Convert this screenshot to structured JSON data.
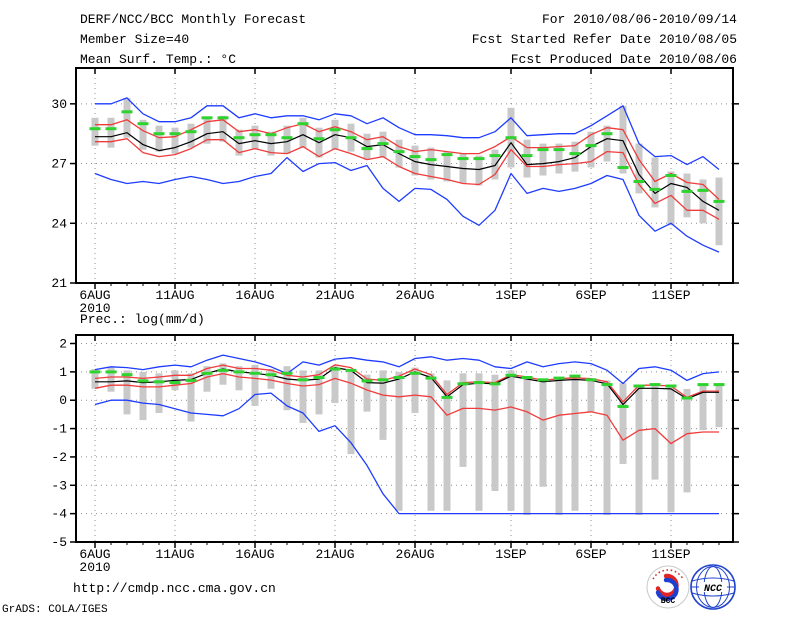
{
  "header": {
    "title": "DERF/NCC/BCC Monthly Forecast",
    "member_size": "Member Size=40",
    "for_range": "For 2010/08/06-2010/09/14",
    "fcst_started": "Fcst Started Refer Date 2010/08/05",
    "fcst_produced": "Fcst Produced Date 2010/08/06"
  },
  "footer": {
    "url": "http://cmdp.ncc.cma.gov.cn",
    "credit": "GrADS: COLA/IGES",
    "logos": [
      {
        "label": "BCC"
      },
      {
        "label": "NCC"
      }
    ]
  },
  "colors": {
    "blue": "#1e3cff",
    "red": "#f03c3c",
    "green": "#2fd32f",
    "black": "#000000",
    "bar": "#c9c9c9",
    "grid": "#8f8f8f"
  },
  "chart_data": [
    {
      "type": "line",
      "title": "Mean Surf. Temp.: °C",
      "x_start": "6AUG2010",
      "x_days": 40,
      "ylim": [
        21,
        31.8
      ],
      "yticks": [
        30,
        27,
        24,
        21
      ],
      "xticks": [
        {
          "label": "6AUG",
          "sub": "2010",
          "day": 0
        },
        {
          "label": "11AUG",
          "day": 5
        },
        {
          "label": "16AUG",
          "day": 10
        },
        {
          "label": "21AUG",
          "day": 15
        },
        {
          "label": "26AUG",
          "day": 20
        },
        {
          "label": "1SEP",
          "day": 26
        },
        {
          "label": "6SEP",
          "day": 31
        },
        {
          "label": "11SEP",
          "day": 36
        }
      ],
      "series": [
        {
          "name": "ensemble-max-blue",
          "color": "blue",
          "values": [
            30.0,
            30.0,
            30.3,
            29.5,
            29.1,
            29.1,
            29.3,
            29.9,
            29.9,
            29.3,
            29.5,
            29.3,
            29.4,
            29.4,
            29.2,
            29.5,
            29.4,
            29.0,
            29.3,
            28.8,
            28.45,
            28.45,
            28.4,
            28.3,
            28.3,
            28.6,
            29.3,
            28.4,
            28.45,
            28.5,
            28.5,
            28.9,
            29.4,
            29.9,
            28.0,
            27.35,
            27.4,
            26.95,
            27.35,
            26.7
          ]
        },
        {
          "name": "upper-quartile-red",
          "color": "red",
          "values": [
            28.95,
            28.95,
            29.2,
            28.65,
            28.3,
            28.35,
            28.7,
            29.1,
            29.2,
            28.6,
            28.7,
            28.5,
            28.8,
            29.0,
            28.6,
            28.85,
            28.6,
            28.2,
            28.35,
            27.85,
            27.6,
            27.7,
            27.6,
            27.5,
            27.5,
            27.85,
            28.35,
            27.8,
            27.8,
            27.85,
            27.9,
            28.45,
            28.8,
            28.7,
            27.2,
            26.1,
            26.5,
            26.05,
            25.95,
            25.2
          ]
        },
        {
          "name": "lower-quartile-red",
          "color": "red",
          "values": [
            28.1,
            28.1,
            28.25,
            27.55,
            27.35,
            27.45,
            27.75,
            28.2,
            28.2,
            27.55,
            27.75,
            27.55,
            27.5,
            27.85,
            27.35,
            27.75,
            27.5,
            27.2,
            27.35,
            26.85,
            26.5,
            26.35,
            26.2,
            26.0,
            25.95,
            26.45,
            27.7,
            26.85,
            26.85,
            26.95,
            27.0,
            27.1,
            27.6,
            27.55,
            25.95,
            25.0,
            25.4,
            24.65,
            24.65,
            24.2
          ]
        },
        {
          "name": "ensemble-min-blue",
          "color": "blue",
          "values": [
            26.5,
            26.2,
            26.0,
            26.1,
            26.0,
            26.2,
            26.35,
            26.2,
            26.0,
            26.1,
            26.35,
            26.5,
            27.3,
            26.6,
            27.0,
            27.05,
            26.65,
            26.9,
            25.75,
            25.1,
            25.75,
            25.7,
            25.2,
            24.35,
            23.9,
            24.65,
            26.5,
            25.5,
            25.75,
            25.6,
            25.75,
            26.0,
            26.4,
            26.2,
            24.4,
            23.6,
            24.0,
            23.35,
            22.9,
            22.55
          ]
        },
        {
          "name": "ensemble-mean-black",
          "color": "black",
          "values": [
            28.35,
            28.35,
            28.55,
            27.95,
            27.65,
            27.8,
            28.1,
            28.5,
            28.6,
            28.0,
            28.15,
            28.0,
            28.1,
            28.45,
            28.05,
            28.45,
            28.3,
            27.85,
            27.95,
            27.5,
            27.1,
            26.95,
            26.85,
            26.75,
            26.7,
            26.9,
            28.05,
            26.95,
            27.0,
            27.1,
            27.3,
            27.85,
            28.25,
            28.15,
            26.45,
            25.5,
            26.0,
            25.8,
            25.1,
            24.65
          ]
        }
      ],
      "obs": {
        "name": "green-dash-reference",
        "color": "green",
        "values": [
          28.75,
          28.75,
          29.6,
          29.0,
          28.5,
          28.5,
          28.6,
          29.3,
          29.3,
          28.3,
          28.45,
          28.45,
          28.3,
          29.0,
          28.25,
          28.7,
          28.3,
          27.75,
          28.0,
          27.6,
          27.35,
          27.2,
          27.45,
          27.25,
          27.25,
          27.4,
          28.3,
          27.4,
          27.7,
          27.7,
          27.5,
          27.9,
          28.5,
          26.8,
          26.1,
          25.7,
          26.4,
          25.6,
          25.65,
          25.1
        ]
      },
      "bars": {
        "name": "ensemble-spread-bar",
        "color": "bar",
        "ranges": [
          [
            27.9,
            29.3
          ],
          [
            27.8,
            29.3
          ],
          [
            28.3,
            30.3
          ],
          [
            27.7,
            29.2
          ],
          [
            27.6,
            28.9
          ],
          [
            27.5,
            28.8
          ],
          [
            27.8,
            29.0
          ],
          [
            28.0,
            29.3
          ],
          [
            28.1,
            29.4
          ],
          [
            27.4,
            28.7
          ],
          [
            27.7,
            28.9
          ],
          [
            27.4,
            28.6
          ],
          [
            27.5,
            28.9
          ],
          [
            27.8,
            29.3
          ],
          [
            27.3,
            28.8
          ],
          [
            27.7,
            29.2
          ],
          [
            27.6,
            29.0
          ],
          [
            27.2,
            28.5
          ],
          [
            27.3,
            28.6
          ],
          [
            26.8,
            28.2
          ],
          [
            26.4,
            27.9
          ],
          [
            26.2,
            27.8
          ],
          [
            26.1,
            27.6
          ],
          [
            26.0,
            27.5
          ],
          [
            25.9,
            27.4
          ],
          [
            26.2,
            27.7
          ],
          [
            26.8,
            29.8
          ],
          [
            26.3,
            28.2
          ],
          [
            26.4,
            28.0
          ],
          [
            26.5,
            28.0
          ],
          [
            26.6,
            28.1
          ],
          [
            26.8,
            28.6
          ],
          [
            27.1,
            28.9
          ],
          [
            26.5,
            29.9
          ],
          [
            25.5,
            28.0
          ],
          [
            24.8,
            27.3
          ],
          [
            23.9,
            26.6
          ],
          [
            24.3,
            26.5
          ],
          [
            24.0,
            26.2
          ],
          [
            22.9,
            26.3
          ]
        ]
      }
    },
    {
      "type": "line",
      "title": "Prec.: log(mm/d)",
      "x_start": "6AUG2010",
      "x_days": 40,
      "ylim": [
        -5,
        2.3
      ],
      "yticks": [
        2,
        1,
        0,
        -1,
        -2,
        -3,
        -4,
        -5
      ],
      "xticks": [
        {
          "label": "6AUG",
          "sub": "2010",
          "day": 0
        },
        {
          "label": "11AUG",
          "day": 5
        },
        {
          "label": "16AUG",
          "day": 10
        },
        {
          "label": "21AUG",
          "day": 15
        },
        {
          "label": "26AUG",
          "day": 20
        },
        {
          "label": "1SEP",
          "day": 26
        },
        {
          "label": "6SEP",
          "day": 31
        },
        {
          "label": "11SEP",
          "day": 36
        }
      ],
      "series": [
        {
          "name": "ensemble-max-blue",
          "color": "blue",
          "values": [
            1.08,
            1.18,
            1.15,
            1.08,
            1.18,
            1.24,
            1.18,
            1.41,
            1.59,
            1.47,
            1.35,
            1.18,
            0.94,
            1.35,
            1.24,
            1.45,
            1.5,
            1.41,
            1.35,
            1.18,
            1.47,
            1.53,
            1.41,
            1.47,
            1.41,
            1.18,
            1.12,
            1.35,
            1.18,
            1.29,
            1.35,
            1.29,
            1.06,
            0.59,
            1.12,
            1.18,
            1.06,
            0.7,
            0.94,
            1.0
          ]
        },
        {
          "name": "upper-quartile-red",
          "color": "red",
          "values": [
            0.77,
            0.82,
            0.82,
            0.77,
            0.82,
            0.88,
            0.88,
            1.12,
            1.24,
            1.12,
            1.12,
            1.06,
            0.88,
            0.82,
            0.9,
            1.25,
            1.15,
            0.75,
            0.7,
            0.85,
            1.1,
            0.9,
            0.2,
            0.62,
            0.65,
            0.62,
            0.9,
            0.82,
            0.7,
            0.76,
            0.79,
            0.76,
            0.65,
            -0.06,
            0.53,
            0.53,
            0.5,
            0.1,
            0.32,
            0.32
          ]
        },
        {
          "name": "lower-quartile-red",
          "color": "red",
          "values": [
            0.42,
            0.53,
            0.53,
            0.47,
            0.47,
            0.53,
            0.59,
            0.82,
            0.94,
            0.82,
            0.77,
            0.71,
            0.59,
            0.5,
            0.55,
            0.77,
            0.6,
            0.36,
            0.18,
            0.12,
            0.18,
            0.12,
            -0.53,
            -0.29,
            -0.29,
            -0.35,
            -0.24,
            -0.41,
            -0.7,
            -0.53,
            -0.47,
            -0.41,
            -0.53,
            -1.41,
            -1.06,
            -1.0,
            -1.53,
            -1.18,
            -1.12,
            -1.12
          ]
        },
        {
          "name": "ensemble-min-blue",
          "color": "blue",
          "values": [
            -0.15,
            0.0,
            0.0,
            -0.1,
            -0.15,
            -0.3,
            -0.45,
            -0.5,
            -0.55,
            -0.3,
            0.2,
            0.25,
            -0.2,
            -0.45,
            -1.1,
            -0.9,
            -1.5,
            -2.3,
            -3.3,
            -4.0,
            -4.0,
            -4.0,
            -4.0,
            -4.0,
            -4.0,
            -4.0,
            -4.0,
            -4.0,
            -4.0,
            -4.0,
            -4.0,
            -4.0,
            -4.0,
            -4.0,
            -4.0,
            -4.0,
            -4.0,
            -4.0,
            -4.0,
            -4.0
          ]
        },
        {
          "name": "ensemble-mean-black",
          "color": "black",
          "values": [
            0.65,
            0.65,
            0.68,
            0.62,
            0.65,
            0.7,
            0.73,
            0.95,
            1.1,
            1.0,
            0.95,
            0.88,
            0.75,
            0.7,
            0.75,
            1.15,
            1.05,
            0.62,
            0.6,
            0.75,
            1.0,
            0.8,
            0.12,
            0.55,
            0.6,
            0.58,
            0.85,
            0.75,
            0.65,
            0.7,
            0.73,
            0.7,
            0.58,
            -0.15,
            0.42,
            0.42,
            0.4,
            0.05,
            0.28,
            0.28
          ]
        }
      ],
      "obs": {
        "name": "green-dash-reference",
        "color": "green",
        "values": [
          1.0,
          1.0,
          0.9,
          0.68,
          0.65,
          0.62,
          0.7,
          0.95,
          1.05,
          1.0,
          0.95,
          0.9,
          0.95,
          0.72,
          0.8,
          1.1,
          1.05,
          0.68,
          0.72,
          0.8,
          0.95,
          0.78,
          0.1,
          0.58,
          0.62,
          0.58,
          0.88,
          0.8,
          0.72,
          0.78,
          0.85,
          0.72,
          0.55,
          -0.22,
          0.5,
          0.55,
          0.5,
          0.08,
          0.55,
          0.55
        ]
      },
      "bars": {
        "name": "ensemble-spread-bar",
        "color": "bar",
        "ranges": [
          [
            0.4,
            1.1
          ],
          [
            0.3,
            1.15
          ],
          [
            -0.5,
            1.05
          ],
          [
            -0.7,
            1.0
          ],
          [
            -0.45,
            0.95
          ],
          [
            0.35,
            1.05
          ],
          [
            -0.75,
            0.95
          ],
          [
            0.3,
            1.2
          ],
          [
            0.55,
            1.3
          ],
          [
            0.35,
            1.2
          ],
          [
            -0.2,
            1.25
          ],
          [
            0.4,
            1.1
          ],
          [
            -0.35,
            1.2
          ],
          [
            -0.8,
            1.05
          ],
          [
            -0.5,
            1.05
          ],
          [
            -0.1,
            1.2
          ],
          [
            -1.9,
            1.0
          ],
          [
            -0.4,
            0.9
          ],
          [
            -1.4,
            1.05
          ],
          [
            -3.9,
            1.0
          ],
          [
            -0.45,
            1.15
          ],
          [
            -3.9,
            0.95
          ],
          [
            -3.9,
            0.7
          ],
          [
            -2.35,
            0.95
          ],
          [
            -3.9,
            0.95
          ],
          [
            -3.2,
            0.9
          ],
          [
            -3.9,
            1.05
          ],
          [
            -4.05,
            0.75
          ],
          [
            -3.05,
            0.7
          ],
          [
            -4.05,
            0.75
          ],
          [
            -3.9,
            0.8
          ],
          [
            -0.4,
            0.75
          ],
          [
            -4.05,
            0.7
          ],
          [
            -2.25,
            0.6
          ],
          [
            -4.05,
            0.55
          ],
          [
            -2.8,
            0.6
          ],
          [
            -3.95,
            0.45
          ],
          [
            -3.25,
            0.4
          ],
          [
            -1.05,
            0.55
          ],
          [
            -0.95,
            0.6
          ]
        ]
      }
    }
  ]
}
